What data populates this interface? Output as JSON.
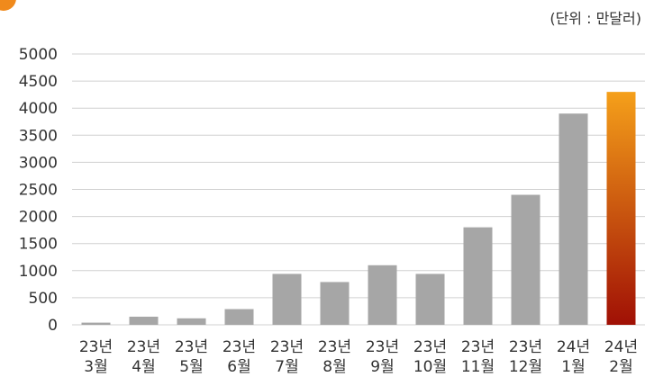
{
  "chart_data": {
    "type": "bar",
    "title": "",
    "unit_label": "(단위 : 만달러)",
    "xlabel": "",
    "ylabel": "",
    "ylim": [
      0,
      5000
    ],
    "y_ticks": [
      0,
      500,
      1000,
      1500,
      2000,
      2500,
      3000,
      3500,
      4000,
      4500,
      5000
    ],
    "grid": true,
    "legend": "none",
    "categories": [
      [
        "23년",
        "3월"
      ],
      [
        "23년",
        "4월"
      ],
      [
        "23년",
        "5월"
      ],
      [
        "23년",
        "6월"
      ],
      [
        "23년",
        "7월"
      ],
      [
        "23년",
        "8월"
      ],
      [
        "23년",
        "9월"
      ],
      [
        "23년",
        "10월"
      ],
      [
        "23년",
        "11월"
      ],
      [
        "23년",
        "12월"
      ],
      [
        "24년",
        "1월"
      ],
      [
        "24년",
        "2월"
      ]
    ],
    "values": [
      40,
      150,
      120,
      290,
      940,
      790,
      1100,
      940,
      1800,
      2400,
      3900,
      4300
    ],
    "colors": {
      "bar": "#a6a6a6",
      "highlight_top": "#f5a01a",
      "highlight_bottom": "#a01005",
      "title_icon": "#f08a1c"
    }
  }
}
